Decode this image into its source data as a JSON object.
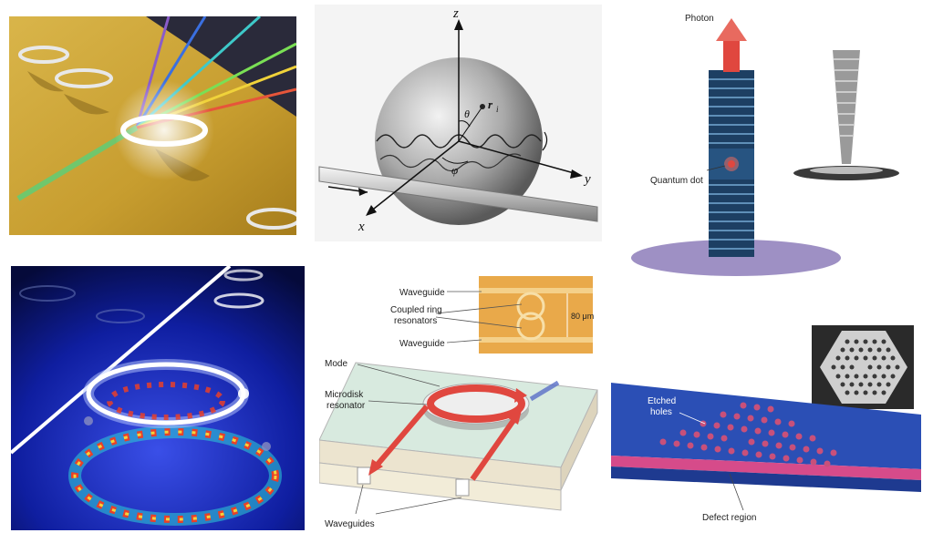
{
  "panel_b": {
    "axis_z": "z",
    "axis_y": "y",
    "axis_x": "x",
    "theta": "θ",
    "phi": "φ",
    "r_i": "r",
    "r_i_sub": "i"
  },
  "panel_c": {
    "photon": "Photon",
    "quantum_dot": "Quantum dot"
  },
  "panel_e": {
    "waveguide_top": "Waveguide",
    "coupled_ring_1": "Coupled ring",
    "coupled_ring_2": "resonators",
    "waveguide_bottom": "Waveguide",
    "scale": "80 μm",
    "mode": "Mode",
    "microdisk_1": "Microdisk",
    "microdisk_2": "resonator",
    "waveguides": "Waveguides"
  },
  "panel_f": {
    "etched_1": "Etched",
    "etched_2": "holes",
    "defect": "Defect region"
  },
  "colors": {
    "gold": "#c9a43a",
    "deep_blue": "#0a1a8a",
    "red_arrow": "#e0473f",
    "pillar": "#1d3f63",
    "slab": "#2b4fb5"
  }
}
